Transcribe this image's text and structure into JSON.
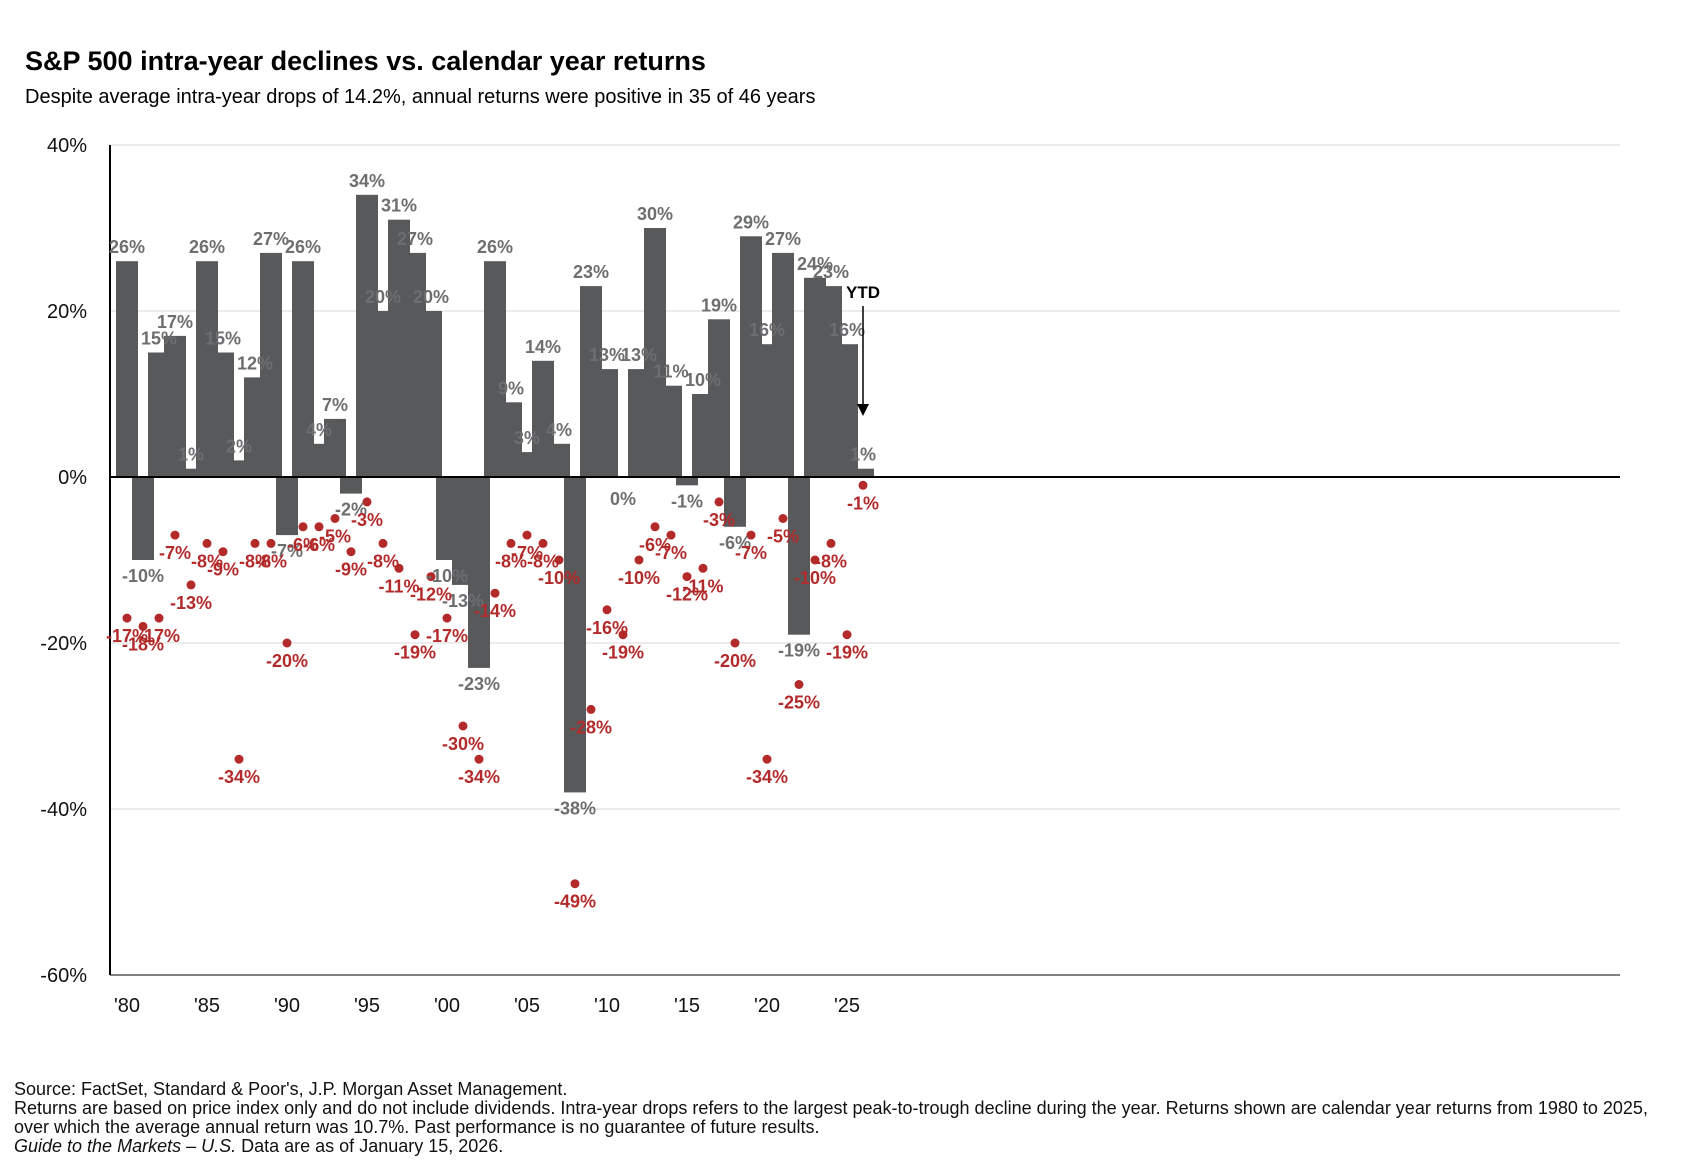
{
  "title": "S&P 500 intra-year declines vs. calendar year returns",
  "subtitle": "Despite average intra-year drops of 14.2%, annual returns were positive in 35 of 46 years",
  "footer": {
    "source": "Source: FactSet, Standard & Poor's, J.P. Morgan Asset Management.",
    "note": "Returns are based on price index only and do not include dividends. Intra-year drops refers to the largest peak-to-trough decline during the year. Returns shown are calendar year returns from 1980 to 2025, over which the average annual return was 10.7%. Past performance is no guarantee of future results.",
    "guide_title": "Guide to the Markets – U.S.",
    "guide_date": "Data are as of January 15, 2026."
  },
  "chart_data": {
    "type": "bar",
    "ylim": [
      -60,
      40
    ],
    "yticks": [
      40,
      20,
      0,
      -20,
      -40,
      -60
    ],
    "ytick_labels": [
      "40%",
      "20%",
      "0%",
      "-20%",
      "-40%",
      "-60%"
    ],
    "years": [
      1980,
      1981,
      1982,
      1983,
      1984,
      1985,
      1986,
      1987,
      1988,
      1989,
      1990,
      1991,
      1992,
      1993,
      1994,
      1995,
      1996,
      1997,
      1998,
      1999,
      2000,
      2001,
      2002,
      2003,
      2004,
      2005,
      2006,
      2007,
      2008,
      2009,
      2010,
      2011,
      2012,
      2013,
      2014,
      2015,
      2016,
      2017,
      2018,
      2019,
      2020,
      2021,
      2022,
      2023,
      2024,
      2025,
      2026
    ],
    "xtick_years": [
      1980,
      1985,
      1990,
      1995,
      2000,
      2005,
      2010,
      2015,
      2020,
      2025
    ],
    "xtick_labels": [
      "'80",
      "'85",
      "'90",
      "'95",
      "'00",
      "'05",
      "'10",
      "'15",
      "'20",
      "'25"
    ],
    "series": [
      {
        "name": "Calendar year returns",
        "type": "bar",
        "color": "#58595b",
        "values": [
          26,
          -10,
          15,
          17,
          1,
          26,
          15,
          2,
          12,
          27,
          -7,
          26,
          4,
          7,
          -2,
          34,
          20,
          31,
          27,
          20,
          -10,
          -13,
          -23,
          26,
          9,
          3,
          14,
          4,
          -38,
          23,
          13,
          0,
          13,
          30,
          11,
          -1,
          10,
          19,
          -6,
          29,
          16,
          27,
          -19,
          24,
          23,
          16,
          1
        ],
        "labels": [
          "26%",
          "-10%",
          "15%",
          "17%",
          "1%",
          "26%",
          "15%",
          "2%",
          "12%",
          "27%",
          "-7%",
          "26%",
          "4%",
          "7%",
          "-2%",
          "34%",
          "20%",
          "31%",
          "27%",
          "20%",
          "-10%",
          "-13%",
          "-23%",
          "26%",
          "9%",
          "3%",
          "14%",
          "4%",
          "-38%",
          "23%",
          "13%",
          "0%",
          "13%",
          "30%",
          "11%",
          "-1%",
          "10%",
          "19%",
          "-6%",
          "29%",
          "16%",
          "27%",
          "-19%",
          "24%",
          "23%",
          "16%",
          "1%"
        ]
      },
      {
        "name": "Intra-year drops",
        "type": "scatter",
        "color": "#b22a2a",
        "values": [
          -17,
          -18,
          -17,
          -7,
          -13,
          -8,
          -9,
          -34,
          -8,
          -8,
          -20,
          -6,
          -6,
          -5,
          -9,
          -3,
          -8,
          -11,
          -19,
          -12,
          -17,
          -30,
          -34,
          -14,
          -8,
          -7,
          -8,
          -10,
          -49,
          -28,
          -16,
          -19,
          -10,
          -6,
          -7,
          -12,
          -11,
          -3,
          -20,
          -7,
          -34,
          -5,
          -25,
          -10,
          -8,
          -19,
          -1
        ],
        "labels": [
          "-17%",
          "-18%",
          "-17%",
          "-7%",
          "-13%",
          "-8%",
          "-9%",
          "-34%",
          "-8%",
          "-8%",
          "-20%",
          "-6%",
          "-6%",
          "-5%",
          "-9%",
          "-3%",
          "-8%",
          "-11%",
          "-19%",
          "-12%",
          "-17%",
          "-30%",
          "-34%",
          "-14%",
          "-8%",
          "-7%",
          "-8%",
          "-10%",
          "-49%",
          "-28%",
          "-16%",
          "-19%",
          "-10%",
          "-6%",
          "-7%",
          "-12%",
          "-11%",
          "-3%",
          "-20%",
          "-7%",
          "-34%",
          "-5%",
          "-25%",
          "-10%",
          "-8%",
          "-19%",
          "-1%"
        ]
      }
    ],
    "annotation": "YTD",
    "grid": true,
    "legend": "none"
  }
}
